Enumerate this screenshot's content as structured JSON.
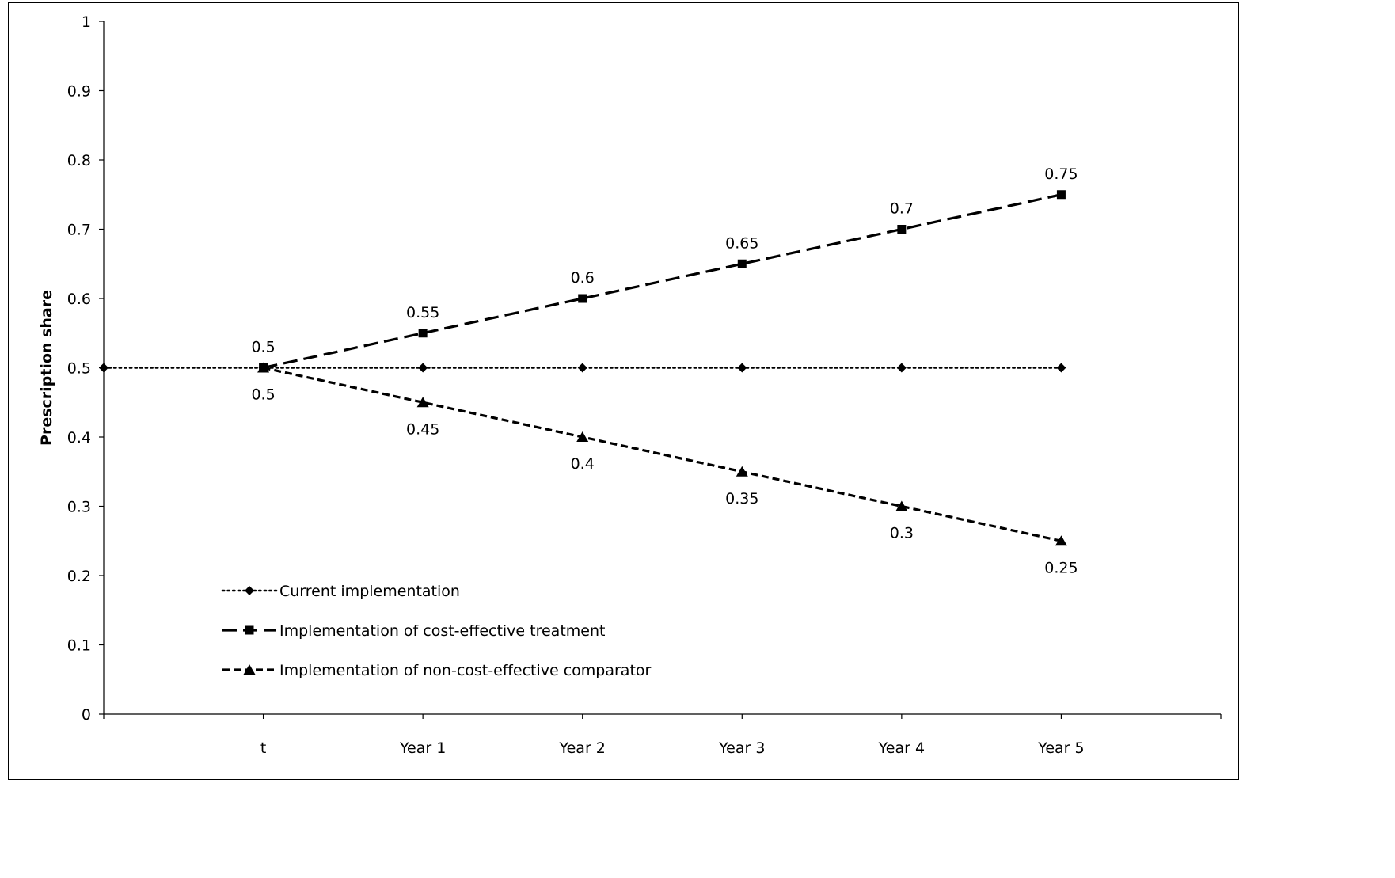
{
  "chart_data": {
    "type": "line",
    "title": "",
    "xlabel": "",
    "ylabel": "Prescription share",
    "ylim": [
      0,
      1
    ],
    "yticks": [
      0,
      0.1,
      0.2,
      0.3,
      0.4,
      0.5,
      0.6,
      0.7,
      0.8,
      0.9,
      1
    ],
    "ytick_labels": [
      "0",
      "0.1",
      "0.2",
      "0.3",
      "0.4",
      "0.5",
      "0.6",
      "0.7",
      "0.8",
      "0.9",
      "1"
    ],
    "categories": [
      "",
      "t",
      "Year 1",
      "Year 2",
      "Year 3",
      "Year 4",
      "Year 5",
      ""
    ],
    "grid": false,
    "legend_position": "lower-left",
    "series": [
      {
        "name": "Current implementation",
        "line_style": "dotted",
        "marker": "diamond",
        "color": "#000000",
        "values": [
          0.5,
          0.5,
          0.5,
          0.5,
          0.5,
          0.5,
          0.5,
          null
        ],
        "labels": [
          null,
          null,
          null,
          null,
          null,
          null,
          null,
          null
        ],
        "label_position": "above"
      },
      {
        "name": "Implementation of cost-effective treatment",
        "line_style": "long-dash",
        "marker": "square",
        "color": "#000000",
        "values": [
          null,
          0.5,
          0.55,
          0.6,
          0.65,
          0.7,
          0.75,
          null
        ],
        "labels": [
          null,
          "0.5",
          "0.55",
          "0.6",
          "0.65",
          "0.7",
          "0.75",
          null
        ],
        "label_position": "above"
      },
      {
        "name": "Implementation of non-cost-effective comparator",
        "line_style": "short-dash",
        "marker": "triangle",
        "color": "#000000",
        "values": [
          null,
          0.5,
          0.45,
          0.4,
          0.35,
          0.3,
          0.25,
          null
        ],
        "labels": [
          null,
          "0.5",
          "0.45",
          "0.4",
          "0.35",
          "0.3",
          "0.25",
          null
        ],
        "label_position": "below"
      }
    ]
  }
}
